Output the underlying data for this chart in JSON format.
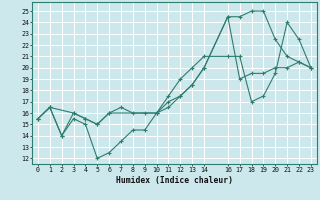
{
  "title": "",
  "xlabel": "Humidex (Indice chaleur)",
  "background_color": "#cce8ec",
  "grid_color": "#ffffff",
  "line_color": "#2e7d6e",
  "xlim": [
    -0.5,
    23.5
  ],
  "ylim": [
    11.5,
    25.8
  ],
  "xticks": [
    0,
    1,
    2,
    3,
    4,
    5,
    6,
    7,
    8,
    9,
    10,
    11,
    12,
    13,
    14,
    16,
    17,
    18,
    19,
    20,
    21,
    22,
    23
  ],
  "yticks": [
    12,
    13,
    14,
    15,
    16,
    17,
    18,
    19,
    20,
    21,
    22,
    23,
    24,
    25
  ],
  "line1_x": [
    0,
    1,
    2,
    3,
    4,
    5,
    6,
    7,
    8,
    9,
    10,
    11,
    12,
    13,
    14,
    16,
    17,
    18,
    19,
    20,
    21,
    22,
    23
  ],
  "line1_y": [
    15.5,
    16.5,
    14.0,
    15.5,
    15.0,
    12.0,
    12.5,
    13.5,
    14.5,
    14.5,
    16.0,
    16.5,
    17.5,
    18.5,
    20.0,
    24.5,
    24.5,
    25.0,
    25.0,
    22.5,
    21.0,
    20.5,
    20.0
  ],
  "line2_x": [
    0,
    1,
    3,
    4,
    5,
    6,
    10,
    11,
    12,
    13,
    14,
    16,
    17,
    18,
    19,
    20,
    21,
    22,
    23
  ],
  "line2_y": [
    15.5,
    16.5,
    16.0,
    15.5,
    15.0,
    16.0,
    16.0,
    17.5,
    19.0,
    20.0,
    21.0,
    21.0,
    21.0,
    17.0,
    17.5,
    19.5,
    24.0,
    22.5,
    20.0
  ],
  "line3_x": [
    0,
    1,
    2,
    3,
    4,
    5,
    6,
    7,
    8,
    9,
    10,
    11,
    12,
    13,
    14,
    16,
    17,
    18,
    19,
    20,
    21,
    22,
    23
  ],
  "line3_y": [
    15.5,
    16.5,
    14.0,
    16.0,
    15.5,
    15.0,
    16.0,
    16.5,
    16.0,
    16.0,
    16.0,
    17.0,
    17.5,
    18.5,
    20.0,
    24.5,
    19.0,
    19.5,
    19.5,
    20.0,
    20.0,
    20.5,
    20.0
  ]
}
